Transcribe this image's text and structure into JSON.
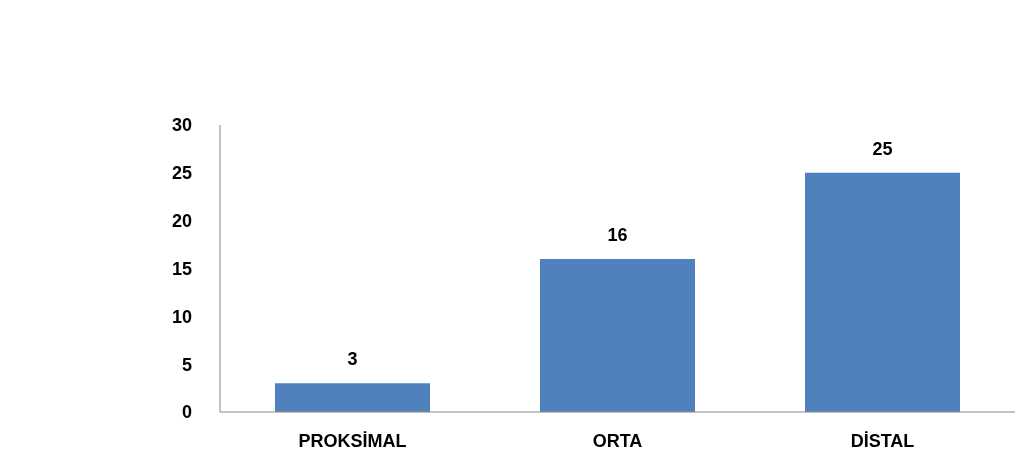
{
  "chart_data": {
    "type": "bar",
    "categories": [
      "PROKSİMAL",
      "ORTA",
      "DİSTAL"
    ],
    "values": [
      3,
      16,
      25
    ],
    "color": "#4f81bd",
    "ylim": [
      0,
      30
    ],
    "yticks": [
      0,
      5,
      10,
      15,
      20,
      25,
      30
    ],
    "grid": false,
    "data_labels": true
  }
}
